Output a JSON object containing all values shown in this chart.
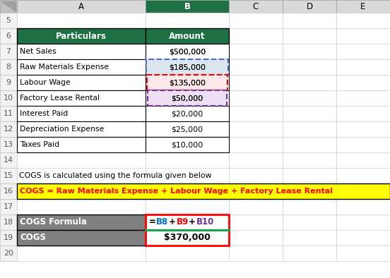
{
  "col_headers": [
    "A",
    "B",
    "C",
    "D",
    "E"
  ],
  "data_rows": [
    [
      "Net Sales",
      "$500,000"
    ],
    [
      "Raw Materials Expense",
      "$185,000"
    ],
    [
      "Labour Wage",
      "$135,000"
    ],
    [
      "Factory Lease Rental",
      "$50,000"
    ],
    [
      "Interest Paid",
      "$20,000"
    ],
    [
      "Depreciation Expense",
      "$25,000"
    ],
    [
      "Taxes Paid",
      "$10,000"
    ]
  ],
  "formula_text": "COGS = Raw Materials Expense + Labour Wage + Factory Lease Rental",
  "note_text": "COGS is calculated using the formula given below",
  "cogs_formula_label": "COGS Formula",
  "cogs_label": "COGS",
  "cogs_value": "$370,000",
  "header_bg": "#1e7145",
  "header_text": "#ffffff",
  "yellow_bg": "#ffff00",
  "yellow_text": "#ff0000",
  "gray_bg": "#808080",
  "gray_text": "#ffffff",
  "col_header_bg": "#d9d9d9",
  "col_header_selected_bg": "#1e7145",
  "grid_color": "#d0d0d0",
  "black": "#000000",
  "white": "#ffffff",
  "row_num_bg": "#f2f2f2",
  "blue_box_color": "#4472c4",
  "red_box_color": "#ff0000",
  "purple_box_color": "#7030a0",
  "formula_blue": "#0070c0",
  "formula_red": "#ff0000",
  "formula_purple": "#7030a0",
  "green_line": "#00b050"
}
